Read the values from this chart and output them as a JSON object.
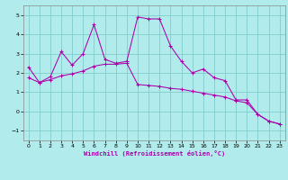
{
  "xlabel": "Windchill (Refroidissement éolien,°C)",
  "background_color": "#b2ebeb",
  "grid_color": "#80cccc",
  "line_color": "#aa00aa",
  "xlim": [
    -0.5,
    23.5
  ],
  "ylim": [
    -1.5,
    5.5
  ],
  "xticks": [
    0,
    1,
    2,
    3,
    4,
    5,
    6,
    7,
    8,
    9,
    10,
    11,
    12,
    13,
    14,
    15,
    16,
    17,
    18,
    19,
    20,
    21,
    22,
    23
  ],
  "yticks": [
    -1,
    0,
    1,
    2,
    3,
    4,
    5
  ],
  "series1_x": [
    0,
    1,
    2,
    3,
    4,
    5,
    6,
    7,
    8,
    9,
    10,
    11,
    12,
    13,
    14,
    15,
    16,
    17,
    18,
    19,
    20,
    21,
    22,
    23
  ],
  "series1_y": [
    2.3,
    1.5,
    1.8,
    3.1,
    2.4,
    3.0,
    4.5,
    2.7,
    2.5,
    2.6,
    4.9,
    4.8,
    4.8,
    3.4,
    2.6,
    2.0,
    2.2,
    1.75,
    1.6,
    0.6,
    0.6,
    -0.15,
    -0.5,
    -0.65
  ],
  "series2_x": [
    0,
    1,
    2,
    3,
    4,
    5,
    6,
    7,
    8,
    9,
    10,
    11,
    12,
    13,
    14,
    15,
    16,
    17,
    18,
    19,
    20,
    21,
    22,
    23
  ],
  "series2_y": [
    1.75,
    1.5,
    1.65,
    1.85,
    1.95,
    2.1,
    2.35,
    2.45,
    2.45,
    2.5,
    1.4,
    1.35,
    1.3,
    1.2,
    1.15,
    1.05,
    0.95,
    0.85,
    0.75,
    0.55,
    0.45,
    -0.15,
    -0.5,
    -0.65
  ]
}
